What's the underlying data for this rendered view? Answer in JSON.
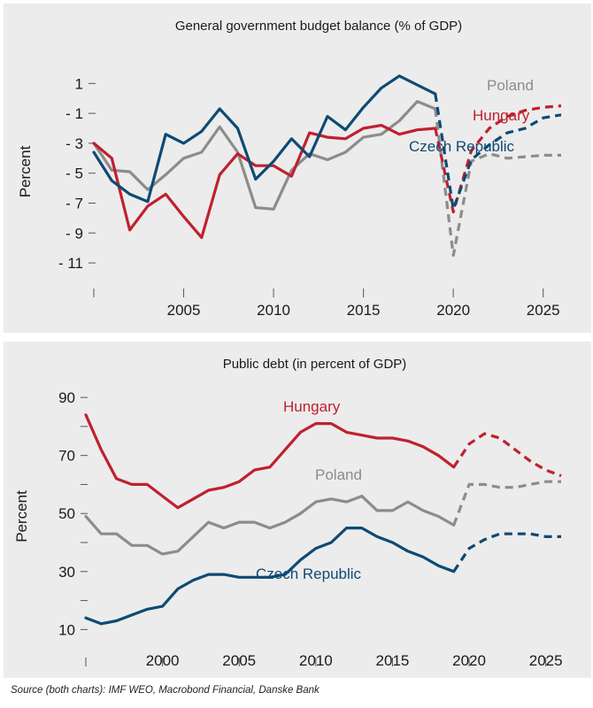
{
  "source_note": "Source (both charts): IMF WEO, Macrobond Financial, Danske Bank",
  "colors": {
    "Poland": "#8c8c8c",
    "Hungary": "#c0202e",
    "Czech Republic": "#0e4a73",
    "background": "#ececec",
    "text": "#1a1a1a"
  },
  "chart_data": [
    {
      "type": "line",
      "title": "General government budget balance (% of GDP)",
      "xlabel": "",
      "ylabel": "Percent",
      "xlim": [
        2000,
        2026
      ],
      "ylim": [
        -12,
        2.2
      ],
      "yticks": [
        1,
        -1,
        -3,
        -5,
        -7,
        -9,
        -11
      ],
      "ytick_labels": [
        "1",
        "- 1",
        "- 3",
        "- 5",
        "- 7",
        "- 9",
        "- 11"
      ],
      "xticks": [
        2005,
        2010,
        2015,
        2020,
        2025
      ],
      "grid": false,
      "series": [
        {
          "name": "Poland",
          "x": [
            2000,
            2001,
            2002,
            2003,
            2004,
            2005,
            2006,
            2007,
            2008,
            2009,
            2010,
            2011,
            2012,
            2013,
            2014,
            2015,
            2016,
            2017,
            2018,
            2019
          ],
          "y": [
            -3.0,
            -4.8,
            -4.9,
            -6.1,
            -5.1,
            -4.0,
            -3.6,
            -1.9,
            -3.6,
            -7.3,
            -7.4,
            -4.8,
            -3.7,
            -4.1,
            -3.6,
            -2.6,
            -2.4,
            -1.5,
            -0.2,
            -0.7
          ],
          "projection_x": [
            2019,
            2020,
            2021,
            2022,
            2023,
            2024,
            2025,
            2026
          ],
          "projection_y": [
            -0.7,
            -10.5,
            -4.2,
            -3.7,
            -4.0,
            -3.9,
            -3.8,
            -3.8
          ],
          "label": "Poland"
        },
        {
          "name": "Hungary",
          "x": [
            2000,
            2001,
            2002,
            2003,
            2004,
            2005,
            2006,
            2007,
            2008,
            2009,
            2010,
            2011,
            2012,
            2013,
            2014,
            2015,
            2016,
            2017,
            2018,
            2019
          ],
          "y": [
            -3.0,
            -4.0,
            -8.8,
            -7.2,
            -6.4,
            -7.9,
            -9.3,
            -5.1,
            -3.7,
            -4.5,
            -4.5,
            -5.2,
            -2.3,
            -2.6,
            -2.7,
            -2.0,
            -1.8,
            -2.4,
            -2.1,
            -2.0
          ],
          "projection_x": [
            2019,
            2020,
            2021,
            2022,
            2023,
            2024,
            2025,
            2026
          ],
          "projection_y": [
            -2.0,
            -7.6,
            -3.5,
            -2.0,
            -1.2,
            -0.8,
            -0.6,
            -0.5
          ],
          "label": "Hungary"
        },
        {
          "name": "Czech Republic",
          "x": [
            2000,
            2001,
            2002,
            2003,
            2004,
            2005,
            2006,
            2007,
            2008,
            2009,
            2010,
            2011,
            2012,
            2013,
            2014,
            2015,
            2016,
            2017,
            2018,
            2019
          ],
          "y": [
            -3.6,
            -5.5,
            -6.4,
            -6.9,
            -2.4,
            -3.0,
            -2.2,
            -0.7,
            -2.0,
            -5.4,
            -4.2,
            -2.7,
            -3.9,
            -1.2,
            -2.1,
            -0.6,
            0.7,
            1.5,
            0.9,
            0.3
          ],
          "projection_x": [
            2019,
            2020,
            2021,
            2022,
            2023,
            2024,
            2025,
            2026
          ],
          "projection_y": [
            0.3,
            -7.4,
            -4.1,
            -3.1,
            -2.3,
            -2.0,
            -1.3,
            -1.1
          ],
          "label": "Czech Republic"
        }
      ]
    },
    {
      "type": "line",
      "title": "Public debt (in percent of GDP)",
      "xlabel": "",
      "ylabel": "Percent",
      "xlim": [
        1995,
        2026
      ],
      "ylim": [
        4,
        94
      ],
      "yticks": [
        90,
        70,
        50,
        30,
        10
      ],
      "ytick_labels": [
        "90",
        "70",
        "50",
        "30",
        "10"
      ],
      "minor_yticks": [
        80,
        60,
        40,
        20
      ],
      "xticks": [
        2000,
        2005,
        2010,
        2015,
        2020,
        2025
      ],
      "grid": false,
      "series": [
        {
          "name": "Hungary",
          "x": [
            1995,
            1996,
            1997,
            1998,
            1999,
            2000,
            2001,
            2002,
            2003,
            2004,
            2005,
            2006,
            2007,
            2008,
            2009,
            2010,
            2011,
            2012,
            2013,
            2014,
            2015,
            2016,
            2017,
            2018,
            2019
          ],
          "y": [
            84,
            72,
            62,
            60,
            60,
            56,
            52,
            55,
            58,
            59,
            61,
            65,
            66,
            72,
            78,
            81,
            81,
            78,
            77,
            76,
            76,
            75,
            73,
            70,
            66
          ],
          "projection_x": [
            2019,
            2020,
            2021,
            2022,
            2023,
            2024,
            2025,
            2026
          ],
          "projection_y": [
            66,
            74,
            77.5,
            76,
            72,
            68,
            65,
            63
          ],
          "label": "Hungary"
        },
        {
          "name": "Poland",
          "x": [
            1995,
            1996,
            1997,
            1998,
            1999,
            2000,
            2001,
            2002,
            2003,
            2004,
            2005,
            2006,
            2007,
            2008,
            2009,
            2010,
            2011,
            2012,
            2013,
            2014,
            2015,
            2016,
            2017,
            2018,
            2019
          ],
          "y": [
            49,
            43,
            43,
            39,
            39,
            36,
            37,
            42,
            47,
            45,
            47,
            47,
            45,
            47,
            50,
            54,
            55,
            54,
            56,
            51,
            51,
            54,
            51,
            49,
            46
          ],
          "projection_x": [
            2019,
            2020,
            2021,
            2022,
            2023,
            2024,
            2025,
            2026
          ],
          "projection_y": [
            46,
            60,
            60,
            59,
            59,
            60,
            61,
            61
          ],
          "label": "Poland"
        },
        {
          "name": "Czech Republic",
          "x": [
            1995,
            1996,
            1997,
            1998,
            1999,
            2000,
            2001,
            2002,
            2003,
            2004,
            2005,
            2006,
            2007,
            2008,
            2009,
            2010,
            2011,
            2012,
            2013,
            2014,
            2015,
            2016,
            2017,
            2018,
            2019
          ],
          "y": [
            14,
            12,
            13,
            15,
            17,
            18,
            24,
            27,
            29,
            29,
            28,
            28,
            28,
            29,
            34,
            38,
            40,
            45,
            45,
            42,
            40,
            37,
            35,
            32,
            30
          ],
          "projection_x": [
            2019,
            2020,
            2021,
            2022,
            2023,
            2024,
            2025,
            2026
          ],
          "projection_y": [
            30,
            38,
            41,
            43,
            43,
            43,
            42,
            42
          ],
          "label": "Czech Republic"
        }
      ]
    }
  ]
}
